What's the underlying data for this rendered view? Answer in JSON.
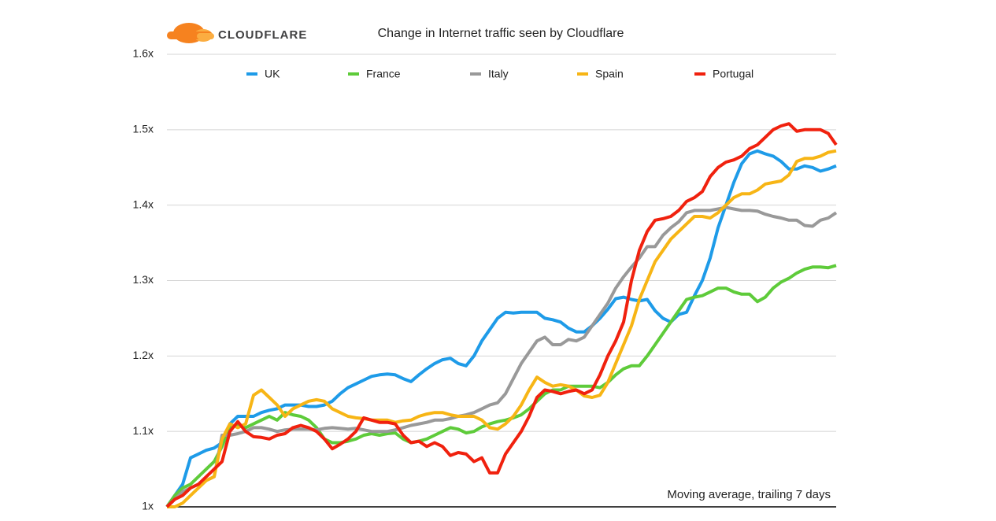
{
  "chart_data": {
    "type": "line",
    "logo": "CLOUDFLARE",
    "title": "Change in Internet traffic seen by Cloudflare",
    "annotation": "Moving average, trailing 7 days",
    "categories": [
      null,
      null,
      null,
      null,
      null,
      null,
      null,
      null,
      null,
      null,
      null,
      null,
      null,
      null,
      null,
      null,
      null,
      null,
      null,
      null,
      null,
      null,
      null,
      null,
      null,
      null,
      null,
      null,
      null,
      null,
      null,
      null,
      null,
      null,
      null,
      null,
      null,
      null,
      null,
      null,
      null,
      null,
      null,
      null,
      null,
      null,
      null,
      null,
      null,
      null,
      null,
      null,
      null,
      null,
      null,
      null,
      null,
      null,
      null,
      null,
      null,
      null,
      null,
      null,
      null,
      null,
      null,
      null,
      null,
      null,
      null,
      null,
      null,
      null,
      null,
      null,
      null,
      null,
      null,
      null,
      null,
      null,
      null,
      null,
      null,
      null
    ],
    "ylim": [
      1,
      1.6
    ],
    "yticks": [
      {
        "value": 1,
        "label": "1x"
      },
      {
        "value": 1.1,
        "label": "1.1x"
      },
      {
        "value": 1.2,
        "label": "1.2x"
      },
      {
        "value": 1.3,
        "label": "1.3x"
      },
      {
        "value": 1.4,
        "label": "1.4x"
      },
      {
        "value": 1.5,
        "label": "1.5x"
      },
      {
        "value": 1.6,
        "label": "1.6x"
      }
    ],
    "grid": true,
    "legend": "top",
    "series": [
      {
        "name": "UK",
        "color": "#1e9be8",
        "values": [
          1.0,
          1.015,
          1.03,
          1.065,
          1.07,
          1.075,
          1.078,
          1.085,
          1.11,
          1.12,
          1.12,
          1.12,
          1.125,
          1.128,
          1.13,
          1.135,
          1.135,
          1.135,
          1.133,
          1.133,
          1.135,
          1.14,
          1.15,
          1.158,
          1.163,
          1.168,
          1.173,
          1.175,
          1.176,
          1.175,
          1.17,
          1.166,
          1.175,
          1.183,
          1.19,
          1.195,
          1.197,
          1.19,
          1.187,
          1.2,
          1.22,
          1.235,
          1.25,
          1.258,
          1.257,
          1.258,
          1.258,
          1.258,
          1.25,
          1.248,
          1.245,
          1.237,
          1.232,
          1.232,
          1.24,
          1.25,
          1.262,
          1.276,
          1.278,
          1.275,
          1.273,
          1.275,
          1.26,
          1.25,
          1.245,
          1.255,
          1.258,
          1.28,
          1.3,
          1.33,
          1.37,
          1.4,
          1.43,
          1.455,
          1.468,
          1.472,
          1.468,
          1.465,
          1.458,
          1.448,
          1.448,
          1.452,
          1.45,
          1.445,
          1.448,
          1.452
        ]
      },
      {
        "name": "France",
        "color": "#5ecb3a",
        "values": [
          1.0,
          1.015,
          1.025,
          1.03,
          1.04,
          1.05,
          1.06,
          1.08,
          1.105,
          1.108,
          1.105,
          1.11,
          1.115,
          1.12,
          1.115,
          1.125,
          1.122,
          1.12,
          1.115,
          1.105,
          1.09,
          1.085,
          1.085,
          1.087,
          1.09,
          1.095,
          1.097,
          1.095,
          1.097,
          1.098,
          1.09,
          1.085,
          1.087,
          1.09,
          1.095,
          1.1,
          1.105,
          1.103,
          1.098,
          1.1,
          1.106,
          1.11,
          1.113,
          1.115,
          1.118,
          1.122,
          1.13,
          1.14,
          1.15,
          1.155,
          1.155,
          1.16,
          1.16,
          1.16,
          1.16,
          1.158,
          1.165,
          1.175,
          1.183,
          1.187,
          1.187,
          1.2,
          1.215,
          1.23,
          1.245,
          1.26,
          1.275,
          1.278,
          1.28,
          1.285,
          1.29,
          1.29,
          1.285,
          1.282,
          1.282,
          1.272,
          1.278,
          1.29,
          1.298,
          1.303,
          1.31,
          1.315,
          1.318,
          1.318,
          1.317,
          1.32
        ]
      },
      {
        "name": "Italy",
        "color": "#999999",
        "values": [
          1.0,
          1.01,
          1.02,
          1.025,
          1.03,
          1.035,
          1.04,
          1.095,
          1.095,
          1.097,
          1.1,
          1.105,
          1.105,
          1.103,
          1.1,
          1.102,
          1.103,
          1.103,
          1.103,
          1.102,
          1.104,
          1.105,
          1.104,
          1.103,
          1.104,
          1.102,
          1.1,
          1.1,
          1.1,
          1.102,
          1.105,
          1.108,
          1.11,
          1.112,
          1.115,
          1.115,
          1.117,
          1.12,
          1.122,
          1.125,
          1.13,
          1.135,
          1.138,
          1.15,
          1.17,
          1.19,
          1.205,
          1.22,
          1.225,
          1.215,
          1.215,
          1.222,
          1.22,
          1.225,
          1.24,
          1.255,
          1.27,
          1.29,
          1.305,
          1.318,
          1.33,
          1.345,
          1.345,
          1.36,
          1.37,
          1.378,
          1.39,
          1.393,
          1.393,
          1.393,
          1.395,
          1.397,
          1.395,
          1.393,
          1.393,
          1.392,
          1.388,
          1.385,
          1.383,
          1.38,
          1.38,
          1.373,
          1.372,
          1.38,
          1.383,
          1.39
        ]
      },
      {
        "name": "Spain",
        "color": "#f7b515",
        "values": [
          1.0,
          1.0,
          1.005,
          1.015,
          1.025,
          1.035,
          1.04,
          1.09,
          1.11,
          1.105,
          1.11,
          1.148,
          1.155,
          1.145,
          1.135,
          1.12,
          1.13,
          1.135,
          1.14,
          1.142,
          1.14,
          1.13,
          1.125,
          1.12,
          1.118,
          1.117,
          1.115,
          1.115,
          1.115,
          1.112,
          1.114,
          1.115,
          1.12,
          1.123,
          1.125,
          1.125,
          1.122,
          1.12,
          1.12,
          1.12,
          1.115,
          1.105,
          1.103,
          1.11,
          1.12,
          1.135,
          1.155,
          1.172,
          1.165,
          1.16,
          1.162,
          1.16,
          1.155,
          1.147,
          1.145,
          1.148,
          1.165,
          1.19,
          1.215,
          1.24,
          1.275,
          1.3,
          1.325,
          1.34,
          1.355,
          1.365,
          1.375,
          1.385,
          1.385,
          1.383,
          1.39,
          1.4,
          1.41,
          1.415,
          1.415,
          1.42,
          1.428,
          1.43,
          1.432,
          1.44,
          1.458,
          1.462,
          1.462,
          1.465,
          1.47,
          1.472
        ]
      },
      {
        "name": "Portugal",
        "color": "#f0210e",
        "values": [
          1.0,
          1.01,
          1.015,
          1.025,
          1.03,
          1.04,
          1.05,
          1.06,
          1.1,
          1.113,
          1.1,
          1.093,
          1.092,
          1.09,
          1.095,
          1.097,
          1.105,
          1.108,
          1.105,
          1.1,
          1.09,
          1.077,
          1.083,
          1.09,
          1.1,
          1.118,
          1.115,
          1.112,
          1.112,
          1.11,
          1.095,
          1.085,
          1.087,
          1.08,
          1.085,
          1.08,
          1.068,
          1.072,
          1.07,
          1.06,
          1.065,
          1.045,
          1.045,
          1.07,
          1.085,
          1.1,
          1.12,
          1.145,
          1.155,
          1.153,
          1.15,
          1.153,
          1.155,
          1.15,
          1.155,
          1.175,
          1.2,
          1.22,
          1.245,
          1.3,
          1.34,
          1.365,
          1.38,
          1.382,
          1.385,
          1.393,
          1.405,
          1.41,
          1.418,
          1.438,
          1.45,
          1.457,
          1.46,
          1.465,
          1.475,
          1.48,
          1.49,
          1.5,
          1.505,
          1.508,
          1.498,
          1.5,
          1.5,
          1.5,
          1.495,
          1.48
        ]
      }
    ]
  }
}
